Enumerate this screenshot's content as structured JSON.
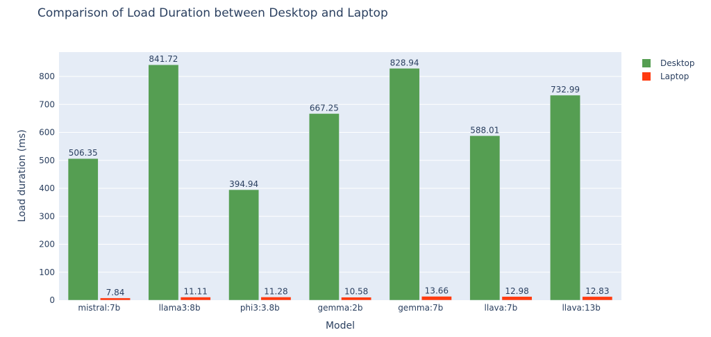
{
  "chart_data": {
    "type": "bar",
    "title": "Comparison of Load Duration between Desktop and Laptop",
    "xlabel": "Model",
    "ylabel": "Load duration (ms)",
    "categories": [
      "mistral:7b",
      "llama3:8b",
      "phi3:3.8b",
      "gemma:2b",
      "gemma:7b",
      "llava:7b",
      "llava:13b"
    ],
    "series": [
      {
        "name": "Desktop",
        "color": "#559e52",
        "values": [
          506.35,
          841.72,
          394.94,
          667.25,
          828.94,
          588.01,
          732.99
        ],
        "labels": [
          "506.35",
          "841.72",
          "394.94",
          "667.25",
          "828.94",
          "588.01",
          "732.99"
        ]
      },
      {
        "name": "Laptop",
        "color": "#ff3b10",
        "values": [
          7.84,
          11.11,
          11.28,
          10.58,
          13.66,
          12.98,
          12.83
        ],
        "labels": [
          "7.84",
          "11.11",
          "11.28",
          "10.58",
          "13.66",
          "12.98",
          "12.83"
        ]
      }
    ],
    "ylim": [
      0,
      887
    ],
    "yticks": [
      0,
      100,
      200,
      300,
      400,
      500,
      600,
      700,
      800
    ],
    "ytick_labels": [
      "0",
      "100",
      "200",
      "300",
      "400",
      "500",
      "600",
      "700",
      "800"
    ],
    "grid": true,
    "legend_position": "top-right",
    "plot_background": "#e5ecf6"
  }
}
